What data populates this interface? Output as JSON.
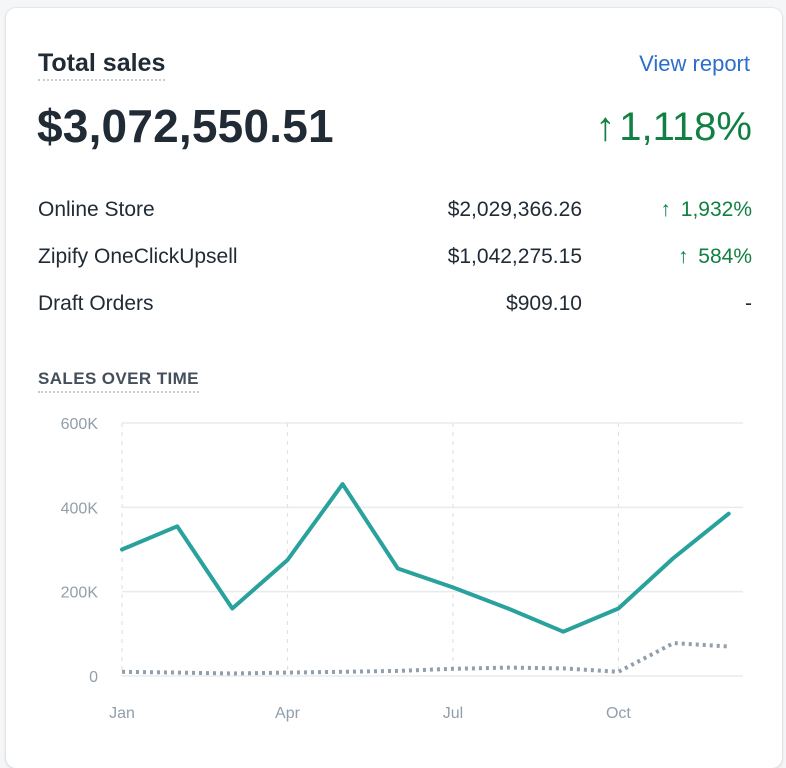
{
  "card": {
    "title": "Total sales",
    "view_report": "View report",
    "total": "$3,072,550.51",
    "total_change_arrow": "↑",
    "total_change": "1,118%"
  },
  "rows": [
    {
      "name": "Online Store",
      "amount": "$2,029,366.26",
      "arrow": "↑",
      "change": "1,932%"
    },
    {
      "name": "Zipify OneClickUpsell",
      "amount": "$1,042,275.15",
      "arrow": "↑",
      "change": "584%"
    },
    {
      "name": "Draft Orders",
      "amount": "$909.10",
      "arrow": "",
      "change": "-"
    }
  ],
  "colors": {
    "accent_line": "#29a19c",
    "comparison_line": "#919eab",
    "positive": "#108043",
    "link": "#2c6ecb"
  },
  "chart_title": "SALES OVER TIME",
  "chart_data": {
    "type": "line",
    "title": "SALES OVER TIME",
    "x_ticks": [
      "Jan",
      "Apr",
      "Jul",
      "Oct"
    ],
    "y_ticks": [
      "0",
      "200K",
      "400K",
      "600K"
    ],
    "ylim": [
      0,
      600000
    ],
    "xlim": [
      0,
      11.15
    ],
    "grid": true,
    "series": [
      {
        "style": "solid",
        "x": [
          0,
          1,
          2,
          3,
          4,
          5,
          6,
          7,
          8,
          9,
          10,
          11
        ],
        "y": [
          300000,
          355000,
          160000,
          275000,
          455000,
          255000,
          210000,
          160000,
          105000,
          160000,
          280000,
          385000
        ]
      },
      {
        "style": "dotted",
        "x": [
          0,
          1,
          2,
          3,
          4,
          5,
          6,
          7,
          8,
          9,
          10,
          11
        ],
        "y": [
          10000,
          8000,
          6000,
          8000,
          10000,
          12000,
          17000,
          20000,
          18000,
          10000,
          78000,
          70000
        ]
      }
    ]
  }
}
